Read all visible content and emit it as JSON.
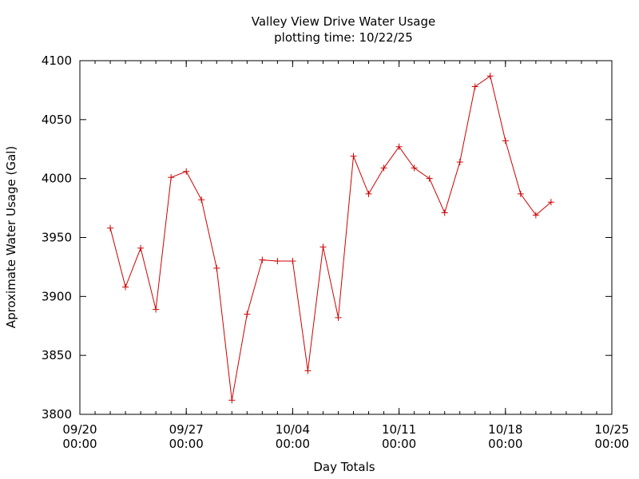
{
  "chart_data": {
    "type": "line",
    "title": "Valley View Drive Water Usage",
    "subtitle": "plotting time: 10/22/25",
    "xlabel": "Day Totals",
    "ylabel": "Aproximate Water Usage (Gal)",
    "xlim": [
      "2025-09-20",
      "2025-10-25"
    ],
    "ylim": [
      3800,
      4100
    ],
    "grid": false,
    "colors": {
      "series": "#cc0000",
      "axis": "#000000"
    },
    "x_ticks": [
      {
        "date": "2025-09-20",
        "line1": "09/20",
        "line2": "00:00"
      },
      {
        "date": "2025-09-27",
        "line1": "09/27",
        "line2": "00:00"
      },
      {
        "date": "2025-10-04",
        "line1": "10/04",
        "line2": "00:00"
      },
      {
        "date": "2025-10-11",
        "line1": "10/11",
        "line2": "00:00"
      },
      {
        "date": "2025-10-18",
        "line1": "10/18",
        "line2": "00:00"
      },
      {
        "date": "2025-10-25",
        "line1": "10/25",
        "line2": "00:00"
      }
    ],
    "y_ticks": [
      "3800",
      "3850",
      "3900",
      "3950",
      "4000",
      "4050",
      "4100"
    ],
    "series": [
      {
        "points": [
          {
            "x": "2025-09-22",
            "y": 3958
          },
          {
            "x": "2025-09-23",
            "y": 3908
          },
          {
            "x": "2025-09-24",
            "y": 3941
          },
          {
            "x": "2025-09-25",
            "y": 3889
          },
          {
            "x": "2025-09-26",
            "y": 4001
          },
          {
            "x": "2025-09-27",
            "y": 4006
          },
          {
            "x": "2025-09-28",
            "y": 3982
          },
          {
            "x": "2025-09-29",
            "y": 3924
          },
          {
            "x": "2025-09-30",
            "y": 3812
          },
          {
            "x": "2025-10-01",
            "y": 3885
          },
          {
            "x": "2025-10-02",
            "y": 3931
          },
          {
            "x": "2025-10-03",
            "y": 3930
          },
          {
            "x": "2025-10-04",
            "y": 3930
          },
          {
            "x": "2025-10-05",
            "y": 3837
          },
          {
            "x": "2025-10-06",
            "y": 3942
          },
          {
            "x": "2025-10-07",
            "y": 3882
          },
          {
            "x": "2025-10-08",
            "y": 4019
          },
          {
            "x": "2025-10-09",
            "y": 3987
          },
          {
            "x": "2025-10-10",
            "y": 4009
          },
          {
            "x": "2025-10-11",
            "y": 4027
          },
          {
            "x": "2025-10-12",
            "y": 4009
          },
          {
            "x": "2025-10-13",
            "y": 4000
          },
          {
            "x": "2025-10-14",
            "y": 3971
          },
          {
            "x": "2025-10-15",
            "y": 4014
          },
          {
            "x": "2025-10-16",
            "y": 4078
          },
          {
            "x": "2025-10-17",
            "y": 4087
          },
          {
            "x": "2025-10-18",
            "y": 4032
          },
          {
            "x": "2025-10-19",
            "y": 3987
          },
          {
            "x": "2025-10-20",
            "y": 3969
          },
          {
            "x": "2025-10-21",
            "y": 3980
          }
        ]
      }
    ]
  }
}
